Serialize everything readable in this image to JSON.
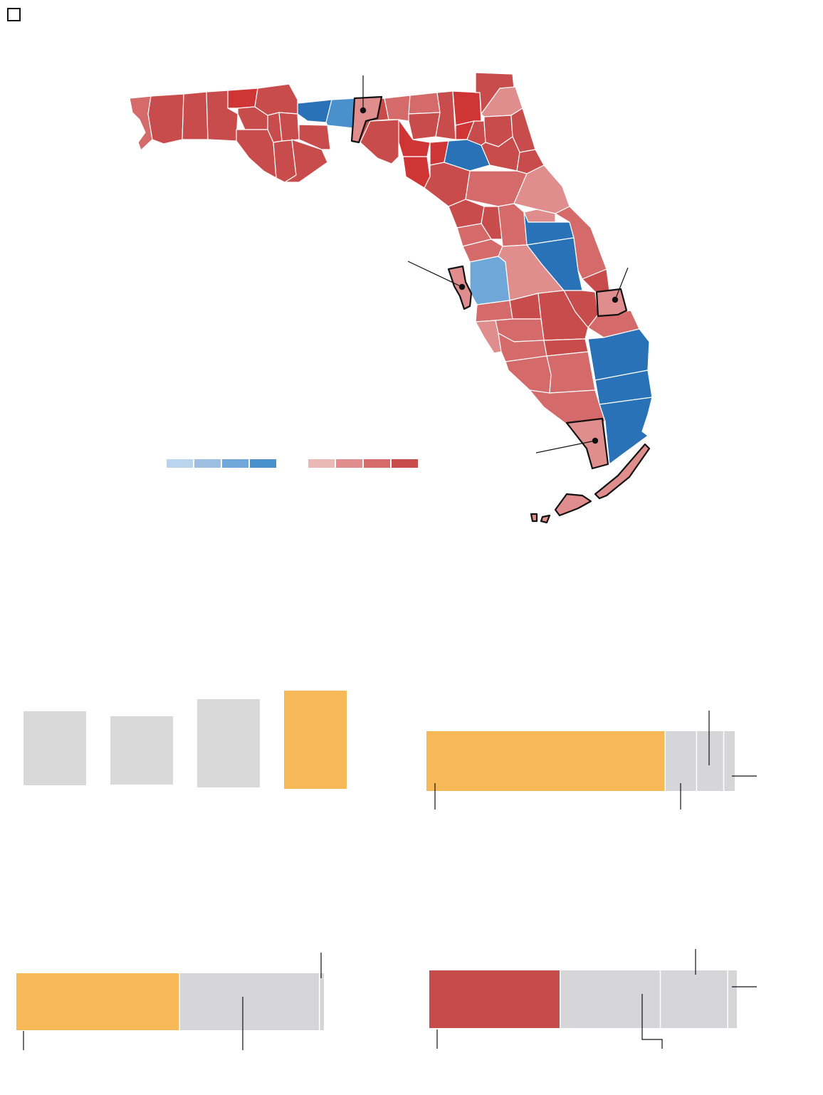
{
  "colors": {
    "background": "#ffffff",
    "red_scale": [
      "#ebb8b8",
      "#e08d8d",
      "#d46a6a",
      "#c94c4c",
      "#d03535"
    ],
    "blue_scale": [
      "#b9d4ec",
      "#9dbfe2",
      "#6fa8d8",
      "#4a90cc",
      "#2a72b8"
    ],
    "highlight_orange": "#f7b858",
    "neutral_gray": "#d6d6d8",
    "gray_box": "#d9d9d9",
    "outline": "#111111",
    "dem_dark_red": "#c64c4c"
  },
  "map": {
    "legend": {
      "blue_swatches": [
        "#b9d4ec",
        "#9dbfe2",
        "#6fa8d8",
        "#4a90cc"
      ],
      "red_swatches": [
        "#ebb8b8",
        "#e08d8d",
        "#d46a6a",
        "#c94c4c"
      ]
    },
    "highlighted_counties": [
      "leon-county",
      "pinellas-county",
      "st-lucie-county",
      "collier-monroe-county"
    ]
  },
  "chart_data": [
    {
      "type": "bar",
      "categories": [
        "",
        "",
        "",
        ""
      ],
      "values": [
        104,
        96,
        124,
        138
      ],
      "highlight_index": 3
    },
    {
      "type": "bar",
      "orientation": "horizontal-stacked",
      "values": [
        77.6,
        10.2,
        8.8,
        3.4
      ],
      "highlight_index": 0
    },
    {
      "type": "bar",
      "orientation": "horizontal-stacked",
      "values": [
        53.2,
        45.5,
        1.3
      ],
      "highlight_index": 0
    },
    {
      "type": "bar",
      "orientation": "horizontal-stacked",
      "values": [
        42.7,
        32.6,
        21.9,
        2.8
      ],
      "highlight_index": 0
    }
  ]
}
